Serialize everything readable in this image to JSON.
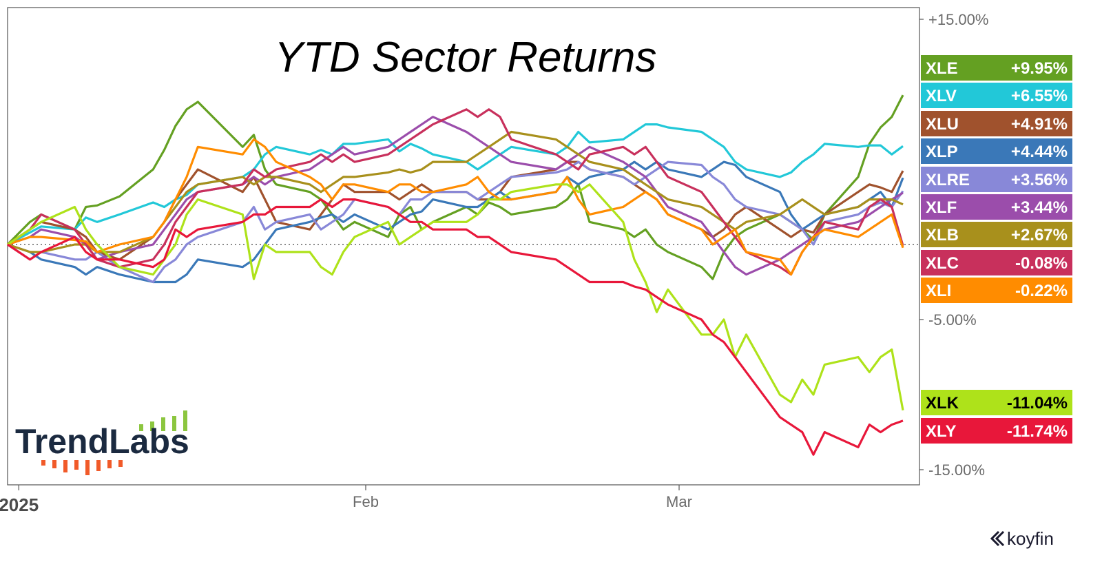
{
  "brand": {
    "name": "TrendLabs",
    "watermark": "koyfin"
  },
  "colors": {
    "axis": "#555555",
    "baseline": "#444444",
    "brand_navy": "#1b2a40",
    "brand_green": "#8cc63f",
    "brand_orange": "#f15a29"
  },
  "chart_data": {
    "type": "line",
    "title": "YTD Sector Returns",
    "xlabel": "",
    "ylabel": "",
    "x_tick_labels": [
      "2025",
      "Feb",
      "Mar"
    ],
    "y_tick_labels": [
      "+15.00%",
      "-5.00%",
      "-15.00%"
    ],
    "y_ticks": [
      15,
      -5,
      -15
    ],
    "ylim": [
      -15.2,
      15.5
    ],
    "x_range": [
      "2024-12-31",
      "2025-03-21"
    ],
    "x": [
      "2024-12-31",
      "2025-01-02",
      "2025-01-03",
      "2025-01-06",
      "2025-01-07",
      "2025-01-08",
      "2025-01-10",
      "2025-01-13",
      "2025-01-14",
      "2025-01-15",
      "2025-01-16",
      "2025-01-17",
      "2025-01-21",
      "2025-01-22",
      "2025-01-23",
      "2025-01-24",
      "2025-01-27",
      "2025-01-28",
      "2025-01-29",
      "2025-01-30",
      "2025-01-31",
      "2025-02-03",
      "2025-02-04",
      "2025-02-05",
      "2025-02-06",
      "2025-02-07",
      "2025-02-10",
      "2025-02-11",
      "2025-02-12",
      "2025-02-13",
      "2025-02-14",
      "2025-02-18",
      "2025-02-19",
      "2025-02-20",
      "2025-02-21",
      "2025-02-24",
      "2025-02-25",
      "2025-02-26",
      "2025-02-27",
      "2025-02-28",
      "2025-03-03",
      "2025-03-04",
      "2025-03-05",
      "2025-03-06",
      "2025-03-07",
      "2025-03-10",
      "2025-03-11",
      "2025-03-12",
      "2025-03-13",
      "2025-03-14",
      "2025-03-17",
      "2025-03-18",
      "2025-03-19",
      "2025-03-20",
      "2025-03-21"
    ],
    "zero_line": "dotted",
    "grid": false,
    "legend": "right-side value badges",
    "series": [
      {
        "name": "XLE",
        "color": "#64a022",
        "last_value_label": "+9.95%",
        "values": [
          0.0,
          1.5,
          2.0,
          1.0,
          2.5,
          2.6,
          3.2,
          5.0,
          6.3,
          7.9,
          9.0,
          9.5,
          6.5,
          7.3,
          5.0,
          4.0,
          3.5,
          3.0,
          2.0,
          1.0,
          1.5,
          0.5,
          2.0,
          2.5,
          1.0,
          1.5,
          2.5,
          2.0,
          2.8,
          2.5,
          2.0,
          2.5,
          3.0,
          4.0,
          1.5,
          1.0,
          0.5,
          1.0,
          0.0,
          -0.5,
          -1.5,
          -2.3,
          -0.5,
          0.5,
          1.0,
          2.0,
          1.5,
          1.0,
          0.3,
          2.0,
          4.5,
          6.7,
          7.8,
          8.5,
          9.95
        ]
      },
      {
        "name": "XLV",
        "color": "#22c8d8",
        "last_value_label": "+6.55%",
        "values": [
          0.0,
          0.8,
          1.2,
          1.0,
          1.8,
          1.5,
          2.0,
          2.8,
          2.5,
          3.0,
          3.3,
          4.0,
          4.5,
          5.0,
          6.0,
          6.5,
          6.0,
          6.3,
          6.0,
          6.7,
          6.7,
          7.0,
          6.2,
          6.7,
          6.4,
          6.0,
          5.5,
          5.0,
          5.5,
          6.0,
          6.5,
          6.0,
          6.5,
          7.5,
          6.8,
          7.0,
          7.5,
          8.0,
          8.0,
          7.8,
          7.5,
          7.0,
          6.5,
          5.5,
          5.0,
          4.5,
          4.8,
          5.5,
          6.0,
          6.7,
          6.5,
          6.6,
          6.6,
          6.0,
          6.55
        ]
      },
      {
        "name": "XLU",
        "color": "#a0522d",
        "last_value_label": "+4.91%",
        "values": [
          0.0,
          1.0,
          1.5,
          1.0,
          0.5,
          -0.5,
          -1.0,
          0.5,
          1.5,
          3.0,
          4.0,
          5.0,
          3.5,
          4.5,
          3.0,
          1.5,
          1.0,
          2.0,
          3.0,
          4.0,
          3.5,
          3.5,
          3.0,
          3.5,
          4.0,
          3.5,
          3.5,
          3.0,
          3.0,
          3.5,
          4.5,
          5.0,
          5.5,
          5.5,
          5.0,
          4.5,
          4.0,
          3.5,
          3.0,
          2.0,
          1.0,
          0.5,
          1.0,
          2.0,
          2.5,
          1.0,
          0.5,
          1.0,
          0.8,
          2.0,
          3.5,
          4.0,
          3.8,
          3.5,
          4.91
        ]
      },
      {
        "name": "XLP",
        "color": "#3a78b8",
        "last_value_label": "+4.44%",
        "values": [
          0.0,
          -0.5,
          -1.0,
          -1.5,
          -2.0,
          -1.5,
          -2.0,
          -2.5,
          -2.5,
          -2.5,
          -2.0,
          -1.0,
          -1.5,
          -1.0,
          0.0,
          1.0,
          1.5,
          1.8,
          2.0,
          1.5,
          2.0,
          1.0,
          1.5,
          2.0,
          2.2,
          3.0,
          2.5,
          2.5,
          3.0,
          3.5,
          3.0,
          3.5,
          4.5,
          4.0,
          4.5,
          5.0,
          5.5,
          5.0,
          5.5,
          5.0,
          4.5,
          5.0,
          5.5,
          5.3,
          4.5,
          3.5,
          2.0,
          1.0,
          1.5,
          2.0,
          2.5,
          3.0,
          3.5,
          2.5,
          4.44
        ]
      },
      {
        "name": "XLRE",
        "color": "#8888d8",
        "last_value_label": "+3.56%",
        "values": [
          0.0,
          -1.0,
          -0.5,
          -1.0,
          -1.0,
          -0.5,
          -1.5,
          -2.5,
          -1.5,
          -1.0,
          0.0,
          0.5,
          1.5,
          2.5,
          1.0,
          1.5,
          2.0,
          1.0,
          1.5,
          2.0,
          3.0,
          2.5,
          2.0,
          3.0,
          3.0,
          3.5,
          3.5,
          3.0,
          3.5,
          4.0,
          4.5,
          4.8,
          5.0,
          5.5,
          5.0,
          4.5,
          4.0,
          4.5,
          5.0,
          5.5,
          5.3,
          4.5,
          4.0,
          3.0,
          2.5,
          2.0,
          1.5,
          1.0,
          0.0,
          1.5,
          2.0,
          2.5,
          2.8,
          2.5,
          3.56
        ]
      },
      {
        "name": "XLF",
        "color": "#9b4dab",
        "last_value_label": "+3.44%",
        "values": [
          0.0,
          0.5,
          1.0,
          0.5,
          0.0,
          -1.0,
          -0.5,
          0.0,
          1.0,
          2.0,
          3.0,
          3.5,
          4.0,
          4.5,
          4.0,
          4.5,
          5.0,
          5.5,
          6.0,
          6.5,
          6.0,
          6.5,
          7.0,
          7.5,
          8.0,
          8.5,
          7.5,
          7.0,
          6.5,
          6.0,
          5.5,
          5.0,
          5.5,
          6.0,
          6.5,
          5.5,
          5.0,
          4.5,
          3.5,
          2.5,
          1.5,
          0.5,
          -0.5,
          -1.5,
          -2.0,
          -1.0,
          -0.5,
          0.0,
          0.5,
          1.0,
          1.5,
          2.0,
          2.5,
          3.0,
          3.44
        ]
      },
      {
        "name": "XLB",
        "color": "#a8901c",
        "last_value_label": "+2.67%",
        "values": [
          0.0,
          -0.5,
          -0.5,
          0.0,
          0.0,
          -0.5,
          -0.5,
          0.5,
          1.5,
          2.5,
          3.5,
          4.0,
          4.5,
          4.0,
          4.5,
          4.5,
          4.0,
          3.5,
          4.0,
          4.5,
          4.5,
          4.8,
          5.0,
          4.8,
          5.0,
          5.5,
          5.5,
          6.0,
          6.5,
          7.0,
          7.5,
          7.0,
          6.5,
          6.0,
          5.5,
          5.0,
          4.5,
          4.0,
          3.5,
          3.0,
          2.5,
          2.0,
          1.5,
          1.0,
          1.5,
          2.0,
          2.5,
          3.0,
          2.5,
          2.0,
          2.5,
          3.0,
          3.0,
          3.0,
          2.67
        ]
      },
      {
        "name": "XLC",
        "color": "#c8305c",
        "last_value_label": "-0.08%",
        "values": [
          0.0,
          1.0,
          2.0,
          1.0,
          0.0,
          -1.0,
          -1.5,
          -1.0,
          0.0,
          1.5,
          2.5,
          3.5,
          4.0,
          5.0,
          4.5,
          5.0,
          5.5,
          6.0,
          5.5,
          6.0,
          5.5,
          6.0,
          6.5,
          7.0,
          7.5,
          8.0,
          9.0,
          8.5,
          9.0,
          8.5,
          7.0,
          6.0,
          5.5,
          5.0,
          6.0,
          6.5,
          6.0,
          6.5,
          5.5,
          4.5,
          3.5,
          2.5,
          1.5,
          0.5,
          -0.5,
          -1.5,
          -2.0,
          -0.5,
          0.5,
          1.5,
          1.0,
          2.5,
          3.0,
          2.5,
          -0.08
        ]
      },
      {
        "name": "XLI",
        "color": "#ff8c00",
        "last_value_label": "-0.22%",
        "values": [
          0.0,
          0.5,
          0.5,
          0.3,
          0.2,
          -0.5,
          0.0,
          0.5,
          1.5,
          3.0,
          4.5,
          6.5,
          6.0,
          7.0,
          6.5,
          5.5,
          4.5,
          4.0,
          3.0,
          4.0,
          4.0,
          3.5,
          4.0,
          4.0,
          3.5,
          3.5,
          4.0,
          4.5,
          3.5,
          3.0,
          3.0,
          3.5,
          4.5,
          3.0,
          2.0,
          2.5,
          3.0,
          3.5,
          3.0,
          2.0,
          1.0,
          0.0,
          0.5,
          1.0,
          -0.5,
          -1.0,
          -2.0,
          -0.5,
          0.5,
          1.0,
          0.5,
          1.0,
          1.5,
          2.0,
          -0.22
        ]
      },
      {
        "name": "XLK",
        "color": "#aee21a",
        "last_value_label": "-11.04%",
        "values": [
          0.0,
          1.0,
          1.5,
          2.5,
          1.0,
          0.0,
          -1.5,
          -2.0,
          -1.0,
          0.0,
          2.0,
          3.0,
          2.0,
          -2.3,
          0.0,
          -0.5,
          -0.5,
          -1.5,
          -2.0,
          -0.5,
          0.5,
          1.5,
          0.0,
          0.5,
          1.0,
          1.5,
          1.5,
          2.0,
          3.0,
          3.0,
          3.5,
          4.0,
          4.0,
          3.5,
          4.0,
          1.5,
          -1.0,
          -2.5,
          -4.5,
          -3.0,
          -6.0,
          -6.0,
          -5.0,
          -7.5,
          -6.0,
          -10.0,
          -10.5,
          -9.0,
          -10.0,
          -8.0,
          -7.5,
          -8.5,
          -7.5,
          -7.0,
          -11.04
        ]
      },
      {
        "name": "XLY",
        "color": "#e8173a",
        "last_value_label": "-11.74%",
        "values": [
          0.0,
          -1.0,
          -0.5,
          0.5,
          -0.5,
          -1.0,
          -1.0,
          -1.5,
          -1.0,
          1.0,
          0.5,
          1.0,
          1.5,
          2.0,
          2.0,
          2.5,
          2.5,
          3.0,
          2.5,
          3.0,
          3.0,
          2.5,
          2.0,
          1.5,
          1.5,
          1.0,
          1.0,
          0.5,
          0.5,
          0.0,
          -0.5,
          -1.0,
          -1.5,
          -2.0,
          -2.5,
          -2.5,
          -2.8,
          -3.0,
          -3.5,
          -4.0,
          -5.0,
          -6.0,
          -6.5,
          -7.5,
          -8.5,
          -11.5,
          -12.0,
          -12.5,
          -14.0,
          -12.5,
          -13.5,
          -12.0,
          -12.5,
          -12.0,
          -11.74
        ]
      }
    ]
  }
}
